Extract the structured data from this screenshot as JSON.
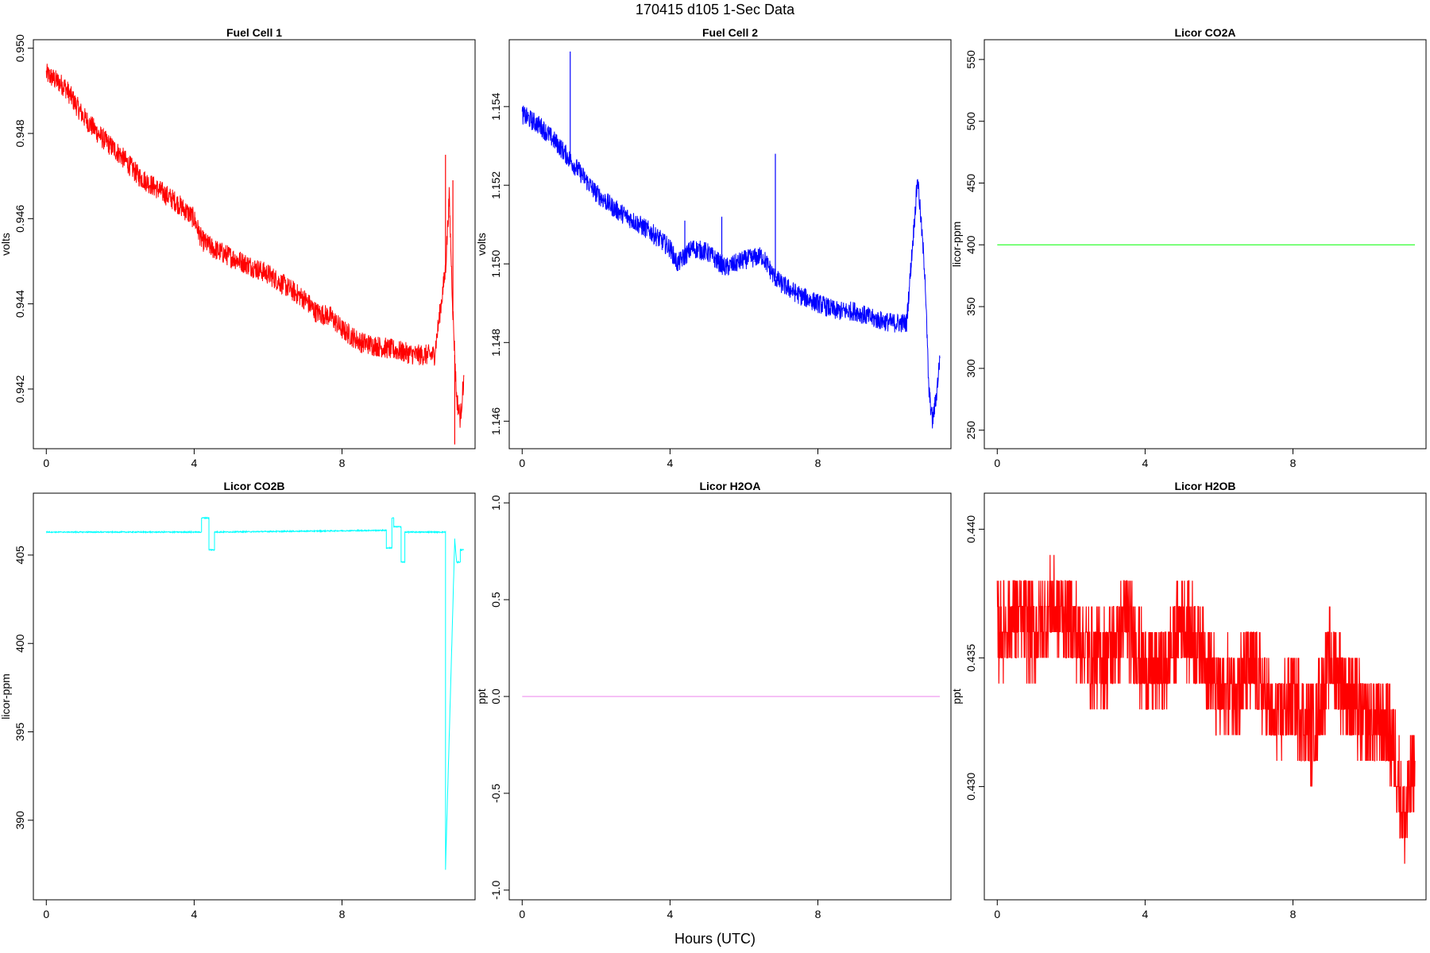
{
  "page": {
    "title": "170415   d105   1-Sec Data",
    "xlabel": "Hours (UTC)"
  },
  "chart_data": [
    {
      "type": "line",
      "title": "Fuel Cell 1",
      "ylabel": "volts",
      "color": "#ff0000",
      "xlim": [
        -0.35,
        11.6
      ],
      "ylim": [
        0.9406,
        0.9502
      ],
      "xticks": [
        0,
        4,
        8
      ],
      "xtick_labels": [
        "0",
        "4",
        "8"
      ],
      "yticks": [
        0.942,
        0.944,
        0.946,
        0.948,
        0.95
      ],
      "ytick_labels": [
        "0.942",
        "0.944",
        "0.946",
        "0.948",
        "0.950"
      ],
      "noise": 0.00025,
      "series": [
        {
          "x": [
            0,
            0.5,
            1,
            1.5,
            2,
            2.5,
            3,
            3.5,
            4,
            4.2,
            4.5,
            5,
            5.5,
            6,
            6.5,
            7,
            7.3,
            7.7,
            8,
            8.5,
            9,
            9.5,
            10,
            10.5,
            10.8,
            10.9,
            11.0,
            11.1,
            11.2,
            11.3
          ],
          "y": [
            0.9494,
            0.9491,
            0.9484,
            0.9479,
            0.9475,
            0.947,
            0.9467,
            0.9464,
            0.946,
            0.9455,
            0.9453,
            0.9451,
            0.9449,
            0.9447,
            0.9444,
            0.9441,
            0.9438,
            0.9437,
            0.9434,
            0.9431,
            0.943,
            0.9429,
            0.9428,
            0.9428,
            0.9448,
            0.9465,
            0.9438,
            0.9418,
            0.9413,
            0.9423
          ]
        }
      ],
      "spikes": [
        {
          "x": 10.8,
          "y": 0.9475
        },
        {
          "x": 11.0,
          "y": 0.9469
        },
        {
          "x": 11.05,
          "y": 0.9407
        }
      ]
    },
    {
      "type": "line",
      "title": "Fuel Cell 2",
      "ylabel": "volts",
      "color": "#0000ff",
      "xlim": [
        -0.35,
        11.6
      ],
      "ylim": [
        1.1453,
        1.1557
      ],
      "xticks": [
        0,
        4,
        8
      ],
      "xtick_labels": [
        "0",
        "4",
        "8"
      ],
      "yticks": [
        1.146,
        1.148,
        1.15,
        1.152,
        1.154
      ],
      "ytick_labels": [
        "1.146",
        "1.148",
        "1.150",
        "1.152",
        "1.154"
      ],
      "noise": 0.00025,
      "series": [
        {
          "x": [
            0,
            0.5,
            1,
            1.5,
            2,
            2.5,
            3,
            3.5,
            4,
            4.2,
            4.6,
            5,
            5.5,
            6,
            6.5,
            6.8,
            7,
            7.5,
            8,
            8.5,
            9,
            9.5,
            10,
            10.4,
            10.7,
            10.9,
            11.0,
            11.1,
            11.2,
            11.3
          ],
          "y": [
            1.1538,
            1.1535,
            1.153,
            1.1524,
            1.1518,
            1.1514,
            1.1511,
            1.1508,
            1.1504,
            1.15,
            1.1504,
            1.1503,
            1.1499,
            1.1501,
            1.1502,
            1.1497,
            1.1495,
            1.1492,
            1.149,
            1.1488,
            1.1488,
            1.1486,
            1.1485,
            1.1485,
            1.1522,
            1.1497,
            1.1468,
            1.146,
            1.1466,
            1.1476
          ]
        }
      ],
      "spikes": [
        {
          "x": 1.3,
          "y": 1.1554
        },
        {
          "x": 4.4,
          "y": 1.1511
        },
        {
          "x": 5.4,
          "y": 1.1512
        },
        {
          "x": 6.85,
          "y": 1.1528
        }
      ]
    },
    {
      "type": "line",
      "title": "Licor CO2A",
      "ylabel": "licor-ppm",
      "color": "#00ff00",
      "xlim": [
        -0.35,
        11.6
      ],
      "ylim": [
        235,
        566
      ],
      "xticks": [
        0,
        4,
        8
      ],
      "xtick_labels": [
        "0",
        "4",
        "8"
      ],
      "yticks": [
        250,
        300,
        350,
        400,
        450,
        500,
        550
      ],
      "ytick_labels": [
        "250",
        "300",
        "350",
        "400",
        "450",
        "500",
        "550"
      ],
      "noise": 0,
      "series": [
        {
          "x": [
            0,
            11.3
          ],
          "y": [
            400,
            400
          ]
        }
      ]
    },
    {
      "type": "line",
      "title": "Licor CO2B",
      "ylabel": "licor-ppm",
      "color": "#00ffff",
      "xlim": [
        -0.35,
        11.6
      ],
      "ylim": [
        385.5,
        408.5
      ],
      "xticks": [
        0,
        4,
        8
      ],
      "xtick_labels": [
        "0",
        "4",
        "8"
      ],
      "yticks": [
        390,
        395,
        400,
        405
      ],
      "ytick_labels": [
        "390",
        "395",
        "400",
        "405"
      ],
      "noise": 0.03,
      "series": [
        {
          "x": [
            0,
            4.2,
            4.2,
            4.4,
            4.4,
            4.5,
            4.5,
            4.55,
            4.55,
            9.2,
            9.2,
            9.35,
            9.35,
            9.4,
            9.4,
            9.6,
            9.6,
            9.7,
            9.7,
            9.9,
            9.9,
            10.8,
            10.8,
            11.05,
            11.1,
            11.2,
            11.2,
            11.3
          ],
          "y": [
            406.3,
            406.3,
            407.1,
            407.1,
            405.3,
            405.3,
            405.3,
            405.3,
            406.3,
            406.4,
            405.4,
            405.4,
            407.1,
            407.1,
            406.6,
            406.6,
            404.6,
            404.6,
            406.3,
            406.3,
            406.3,
            406.3,
            387.2,
            405.9,
            404.6,
            404.6,
            405.3,
            405.3
          ]
        }
      ]
    },
    {
      "type": "line",
      "title": "Licor H2OA",
      "ylabel": "ppt",
      "color": "#ee82ee",
      "xlim": [
        -0.35,
        11.6
      ],
      "ylim": [
        -1.05,
        1.05
      ],
      "xticks": [
        0,
        4,
        8
      ],
      "xtick_labels": [
        "0",
        "4",
        "8"
      ],
      "yticks": [
        -1,
        -0.5,
        0,
        0.5,
        1
      ],
      "ytick_labels": [
        "-1.0",
        "-0.5",
        "0.0",
        "0.5",
        "1.0"
      ],
      "noise": 0,
      "series": [
        {
          "x": [
            0,
            11.3
          ],
          "y": [
            0,
            0
          ]
        }
      ]
    },
    {
      "type": "line",
      "title": "Licor H2OB",
      "ylabel": "ppt",
      "color": "#ff0000",
      "xlim": [
        -0.35,
        11.6
      ],
      "ylim": [
        0.4256,
        0.4414
      ],
      "xticks": [
        0,
        4,
        8
      ],
      "xtick_labels": [
        "0",
        "4",
        "8"
      ],
      "yticks": [
        0.43,
        0.435,
        0.44
      ],
      "ytick_labels": [
        "0.430",
        "0.435",
        "0.440"
      ],
      "noise": 0.0018,
      "quantize": 0.001,
      "series": [
        {
          "x": [
            0,
            0.5,
            1,
            1.5,
            2,
            2.5,
            3,
            3.5,
            4,
            4.5,
            5,
            5.5,
            6,
            6.5,
            7,
            7.5,
            8,
            8.5,
            9,
            9.5,
            10,
            10.5,
            10.8,
            11.0,
            11.3
          ],
          "y": [
            0.436,
            0.4365,
            0.436,
            0.437,
            0.4365,
            0.435,
            0.435,
            0.4365,
            0.4345,
            0.4345,
            0.4365,
            0.4355,
            0.4335,
            0.434,
            0.4345,
            0.4325,
            0.4335,
            0.432,
            0.435,
            0.4335,
            0.4325,
            0.4325,
            0.431,
            0.4285,
            0.431
          ]
        }
      ]
    }
  ]
}
